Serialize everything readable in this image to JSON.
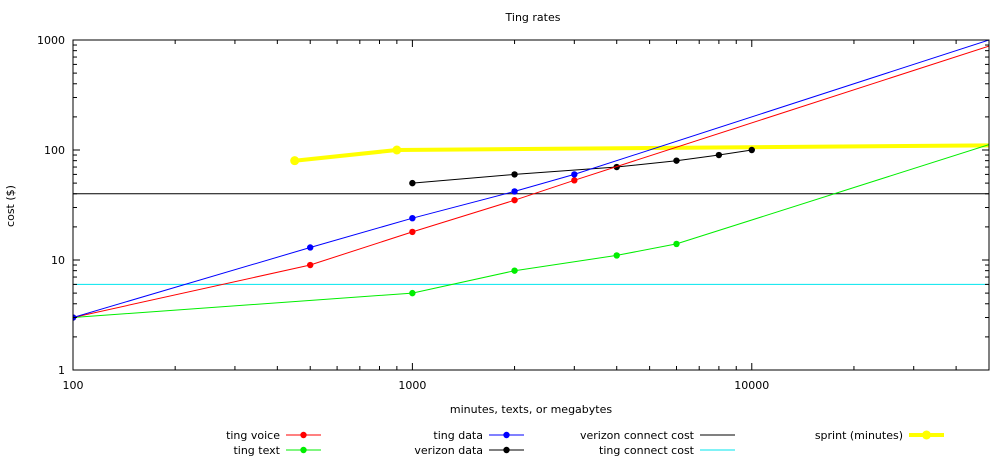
{
  "chart_data": {
    "type": "line",
    "title": "Ting rates",
    "xlabel": "minutes, texts, or megabytes",
    "ylabel": "cost ($)",
    "xscale": "log",
    "yscale": "log",
    "xlim": [
      100,
      50000
    ],
    "ylim": [
      1,
      1000
    ],
    "x_ticks": [
      100,
      1000,
      10000
    ],
    "x_tick_labels": [
      "100",
      "1000",
      "10000"
    ],
    "y_ticks": [
      1,
      10,
      100,
      1000
    ],
    "y_tick_labels": [
      "1",
      "10",
      "100",
      "1000"
    ],
    "grid": false,
    "legend_position": "bottom",
    "series": [
      {
        "name": "ting voice",
        "color": "#ff0000",
        "line_width": 1,
        "markers": true,
        "x": [
          100,
          500,
          1000,
          2000,
          3000,
          50000
        ],
        "y": [
          3,
          9,
          18,
          35,
          53,
          880
        ],
        "marker_x": [
          100,
          500,
          1000,
          2000,
          3000
        ],
        "marker_y": [
          3,
          9,
          18,
          35,
          53
        ]
      },
      {
        "name": "ting text",
        "color": "#00ee00",
        "line_width": 1,
        "markers": true,
        "x": [
          100,
          1000,
          2000,
          4000,
          6000,
          50000
        ],
        "y": [
          3,
          5,
          8,
          11,
          14,
          112
        ],
        "marker_x": [
          100,
          1000,
          2000,
          4000,
          6000
        ],
        "marker_y": [
          3,
          5,
          8,
          11,
          14
        ]
      },
      {
        "name": "ting data",
        "color": "#0000ff",
        "line_width": 1,
        "markers": true,
        "x": [
          100,
          500,
          1000,
          2000,
          3000,
          50000
        ],
        "y": [
          3,
          13,
          24,
          42,
          60,
          1000
        ],
        "marker_x": [
          100,
          500,
          1000,
          2000,
          3000
        ],
        "marker_y": [
          3,
          13,
          24,
          42,
          60
        ]
      },
      {
        "name": "verizon data",
        "color": "#000000",
        "line_width": 1,
        "markers": true,
        "x": [
          1000,
          2000,
          4000,
          6000,
          8000,
          10000
        ],
        "y": [
          50,
          60,
          70,
          80,
          90,
          100
        ],
        "marker_x": [
          1000,
          2000,
          4000,
          6000,
          8000,
          10000
        ],
        "marker_y": [
          50,
          60,
          70,
          80,
          90,
          100
        ]
      },
      {
        "name": "verizon connect cost",
        "color": "#000000",
        "line_width": 1,
        "markers": false,
        "x": [
          100,
          50000
        ],
        "y": [
          40,
          40
        ]
      },
      {
        "name": "ting connect cost",
        "color": "#00e5ee",
        "line_width": 1,
        "markers": false,
        "x": [
          100,
          50000
        ],
        "y": [
          6,
          6
        ]
      },
      {
        "name": "sprint (minutes)",
        "color": "#ffff00",
        "line_width": 4,
        "markers": true,
        "x": [
          450,
          900,
          50000
        ],
        "y": [
          80,
          100,
          110
        ],
        "marker_x": [
          450,
          900
        ],
        "marker_y": [
          80,
          100
        ]
      }
    ]
  }
}
